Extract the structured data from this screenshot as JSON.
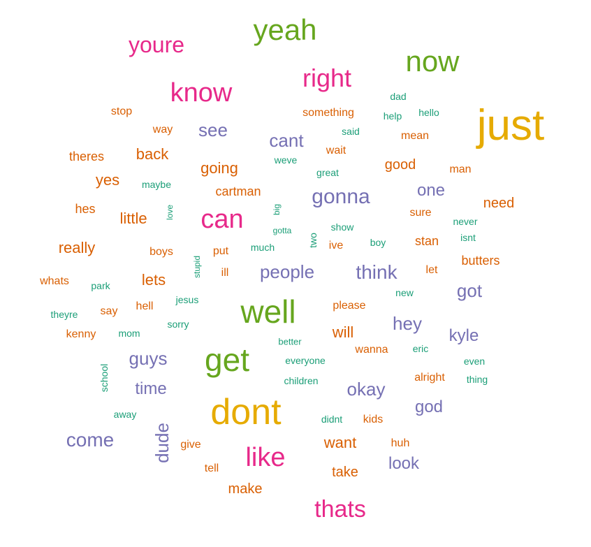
{
  "palette": {
    "teal": "#1B9E77",
    "orange": "#D95F02",
    "purple": "#7570B3",
    "magenta": "#E7298A",
    "green": "#66A61E",
    "gold": "#E6AB02"
  },
  "words": [
    {
      "text": "just",
      "color": "gold"
    },
    {
      "text": "dont",
      "color": "gold"
    },
    {
      "text": "well",
      "color": "green"
    },
    {
      "text": "get",
      "color": "green"
    },
    {
      "text": "yeah",
      "color": "green"
    },
    {
      "text": "now",
      "color": "green"
    },
    {
      "text": "know",
      "color": "magenta"
    },
    {
      "text": "can",
      "color": "magenta"
    },
    {
      "text": "like",
      "color": "magenta"
    },
    {
      "text": "right",
      "color": "magenta"
    },
    {
      "text": "thats",
      "color": "magenta"
    },
    {
      "text": "youre",
      "color": "magenta"
    },
    {
      "text": "gonna",
      "color": "purple"
    },
    {
      "text": "come",
      "color": "purple"
    },
    {
      "text": "think",
      "color": "purple"
    },
    {
      "text": "people",
      "color": "purple"
    },
    {
      "text": "okay",
      "color": "purple"
    },
    {
      "text": "see",
      "color": "purple"
    },
    {
      "text": "cant",
      "color": "purple"
    },
    {
      "text": "one",
      "color": "purple"
    },
    {
      "text": "got",
      "color": "purple"
    },
    {
      "text": "hey",
      "color": "purple"
    },
    {
      "text": "kyle",
      "color": "purple"
    },
    {
      "text": "guys",
      "color": "purple"
    },
    {
      "text": "time",
      "color": "purple"
    },
    {
      "text": "dude",
      "color": "purple"
    },
    {
      "text": "god",
      "color": "purple"
    },
    {
      "text": "look",
      "color": "purple"
    },
    {
      "text": "going",
      "color": "orange"
    },
    {
      "text": "back",
      "color": "orange"
    },
    {
      "text": "little",
      "color": "orange"
    },
    {
      "text": "really",
      "color": "orange"
    },
    {
      "text": "yes",
      "color": "orange"
    },
    {
      "text": "lets",
      "color": "orange"
    },
    {
      "text": "want",
      "color": "orange"
    },
    {
      "text": "will",
      "color": "orange"
    },
    {
      "text": "good",
      "color": "orange"
    },
    {
      "text": "make",
      "color": "orange"
    },
    {
      "text": "take",
      "color": "orange"
    },
    {
      "text": "need",
      "color": "orange"
    },
    {
      "text": "theres",
      "color": "orange"
    },
    {
      "text": "hes",
      "color": "orange"
    },
    {
      "text": "cartman",
      "color": "orange"
    },
    {
      "text": "stan",
      "color": "orange"
    },
    {
      "text": "butters",
      "color": "orange"
    },
    {
      "text": "something",
      "color": "orange"
    },
    {
      "text": "way",
      "color": "orange"
    },
    {
      "text": "stop",
      "color": "orange"
    },
    {
      "text": "whats",
      "color": "orange"
    },
    {
      "text": "mean",
      "color": "orange"
    },
    {
      "text": "wait",
      "color": "orange"
    },
    {
      "text": "man",
      "color": "orange"
    },
    {
      "text": "sure",
      "color": "orange"
    },
    {
      "text": "boys",
      "color": "orange"
    },
    {
      "text": "say",
      "color": "orange"
    },
    {
      "text": "kenny",
      "color": "orange"
    },
    {
      "text": "hell",
      "color": "orange"
    },
    {
      "text": "please",
      "color": "orange"
    },
    {
      "text": "wanna",
      "color": "orange"
    },
    {
      "text": "alright",
      "color": "orange"
    },
    {
      "text": "kids",
      "color": "orange"
    },
    {
      "text": "huh",
      "color": "orange"
    },
    {
      "text": "give",
      "color": "orange"
    },
    {
      "text": "tell",
      "color": "orange"
    },
    {
      "text": "ive",
      "color": "orange"
    },
    {
      "text": "let",
      "color": "orange"
    },
    {
      "text": "put",
      "color": "orange"
    },
    {
      "text": "ill",
      "color": "orange"
    },
    {
      "text": "dad",
      "color": "teal"
    },
    {
      "text": "hello",
      "color": "teal"
    },
    {
      "text": "help",
      "color": "teal"
    },
    {
      "text": "said",
      "color": "teal"
    },
    {
      "text": "weve",
      "color": "teal"
    },
    {
      "text": "great",
      "color": "teal"
    },
    {
      "text": "maybe",
      "color": "teal"
    },
    {
      "text": "love",
      "color": "teal"
    },
    {
      "text": "big",
      "color": "teal"
    },
    {
      "text": "gotta",
      "color": "teal"
    },
    {
      "text": "two",
      "color": "teal"
    },
    {
      "text": "show",
      "color": "teal"
    },
    {
      "text": "never",
      "color": "teal"
    },
    {
      "text": "isnt",
      "color": "teal"
    },
    {
      "text": "boy",
      "color": "teal"
    },
    {
      "text": "much",
      "color": "teal"
    },
    {
      "text": "stupid",
      "color": "teal"
    },
    {
      "text": "park",
      "color": "teal"
    },
    {
      "text": "new",
      "color": "teal"
    },
    {
      "text": "jesus",
      "color": "teal"
    },
    {
      "text": "theyre",
      "color": "teal"
    },
    {
      "text": "sorry",
      "color": "teal"
    },
    {
      "text": "mom",
      "color": "teal"
    },
    {
      "text": "better",
      "color": "teal"
    },
    {
      "text": "eric",
      "color": "teal"
    },
    {
      "text": "even",
      "color": "teal"
    },
    {
      "text": "everyone",
      "color": "teal"
    },
    {
      "text": "children",
      "color": "teal"
    },
    {
      "text": "thing",
      "color": "teal"
    },
    {
      "text": "school",
      "color": "teal"
    },
    {
      "text": "away",
      "color": "teal"
    },
    {
      "text": "didnt",
      "color": "teal"
    }
  ]
}
